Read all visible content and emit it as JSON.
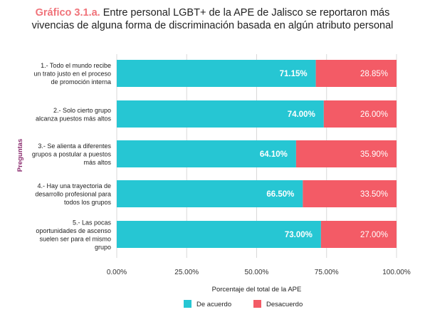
{
  "title": {
    "prefix": "Gráfico 3.1.a.",
    "line1": "Entre personal LGBT+ de la APE de Jalisco se reportaron más",
    "line2": "vivencias de alguna forma de discriminación basada en algún atributo personal"
  },
  "chart_data": {
    "type": "bar",
    "orientation": "horizontal",
    "stacked": true,
    "categories": [
      [
        "1.- Todo el mundo recibe",
        "un trato justo en el proceso",
        "de promoción interna"
      ],
      [
        "2.- Solo cierto grupo",
        "alcanza puestos más altos"
      ],
      [
        "3.- Se alienta a diferentes",
        "grupos a postular a puestos",
        "más altos"
      ],
      [
        "4.- Hay una trayectoria de",
        "desarrollo profesional para",
        "todos los grupos"
      ],
      [
        "5.- Las pocas",
        "oportunidades de ascenso",
        "suelen ser para el mismo",
        "grupo"
      ]
    ],
    "series": [
      {
        "name": "De acuerdo",
        "values": [
          71.15,
          74.0,
          64.1,
          66.5,
          73.0
        ],
        "labels": [
          "71.15%",
          "74.00%",
          "64.10%",
          "66.50%",
          "73.00%"
        ]
      },
      {
        "name": "Desacuerdo",
        "values": [
          28.85,
          26.0,
          35.9,
          33.5,
          27.0
        ],
        "labels": [
          "28.85%",
          "26.00%",
          "35.90%",
          "33.50%",
          "27.00%"
        ]
      }
    ],
    "xticks": [
      "0.00%",
      "25.00%",
      "50.00%",
      "75.00%",
      "100.00%"
    ],
    "xlim": [
      0,
      100
    ],
    "xlabel": "Porcentaje del total de la APE",
    "ylabel": "Preguntas",
    "grid": true,
    "legend_position": "bottom",
    "colors": {
      "De acuerdo": "#26c6d3",
      "Desacuerdo": "#f35b66",
      "axis_title": "#8a2b6e"
    }
  }
}
